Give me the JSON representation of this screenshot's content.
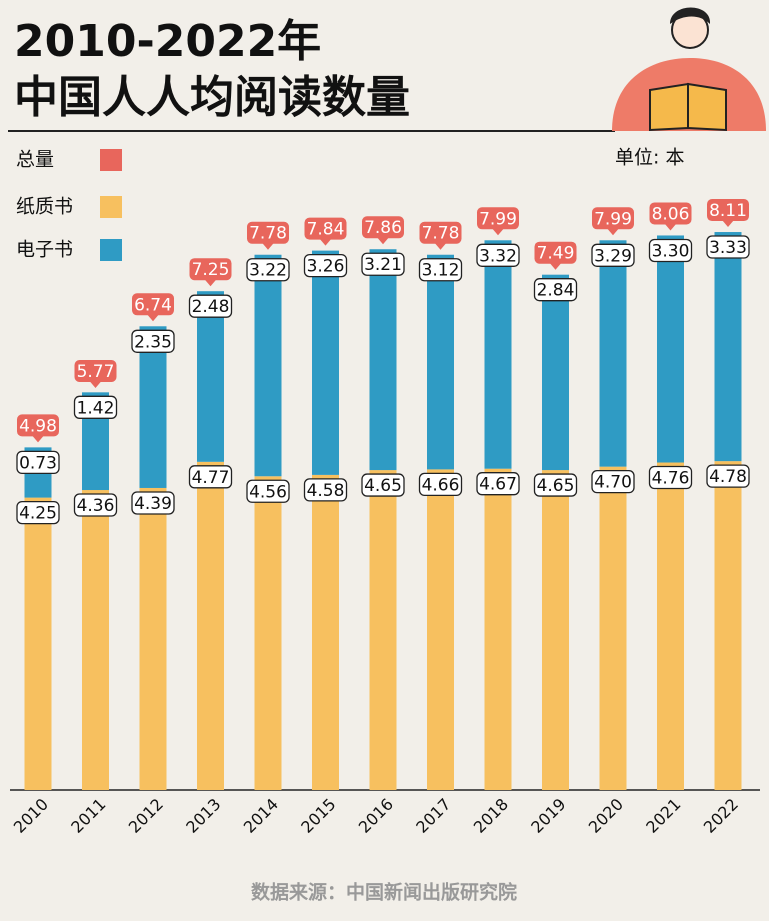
{
  "chart_data": {
    "type": "stacked_bar",
    "title": "2010-2022年",
    "subtitle": "中国人人均阅读数量",
    "unit": "单位: 本",
    "source": "数据来源：中国新闻出版研究院",
    "categories": [
      "2010",
      "2011",
      "2012",
      "2013",
      "2014",
      "2015",
      "2016",
      "2017",
      "2018",
      "2019",
      "2020",
      "2021",
      "2022"
    ],
    "series": [
      {
        "name": "纸质书",
        "color": "#f7c05f",
        "values": [
          4.25,
          4.36,
          4.39,
          4.77,
          4.56,
          4.58,
          4.65,
          4.66,
          4.67,
          4.65,
          4.7,
          4.76,
          4.78
        ],
        "value_labels": [
          "4.25",
          "4.36",
          "4.39",
          "4.77",
          "4.56",
          "4.58",
          "4.65",
          "4.66",
          "4.67",
          "4.65",
          "4.70",
          "4.76",
          "4.78"
        ]
      },
      {
        "name": "电子书",
        "color": "#2f9bc4",
        "values": [
          0.73,
          1.42,
          2.35,
          2.48,
          3.22,
          3.26,
          3.21,
          3.12,
          3.32,
          2.84,
          3.29,
          3.3,
          3.33
        ],
        "value_labels": [
          "0.73",
          "1.42",
          "2.35",
          "2.48",
          "3.22",
          "3.26",
          "3.21",
          "3.12",
          "3.32",
          "2.84",
          "3.29",
          "3.30",
          "3.33"
        ]
      }
    ],
    "totals": {
      "name": "总量",
      "color": "#e8665c",
      "values": [
        4.98,
        5.77,
        6.74,
        7.25,
        7.78,
        7.84,
        7.86,
        7.78,
        7.99,
        7.49,
        7.99,
        8.06,
        8.11
      ],
      "value_labels": [
        "4.98",
        "5.77",
        "6.74",
        "7.25",
        "7.78",
        "7.84",
        "7.86",
        "7.78",
        "7.99",
        "7.49",
        "7.99",
        "8.06",
        "8.11"
      ]
    },
    "ylim": [
      0,
      10
    ]
  }
}
